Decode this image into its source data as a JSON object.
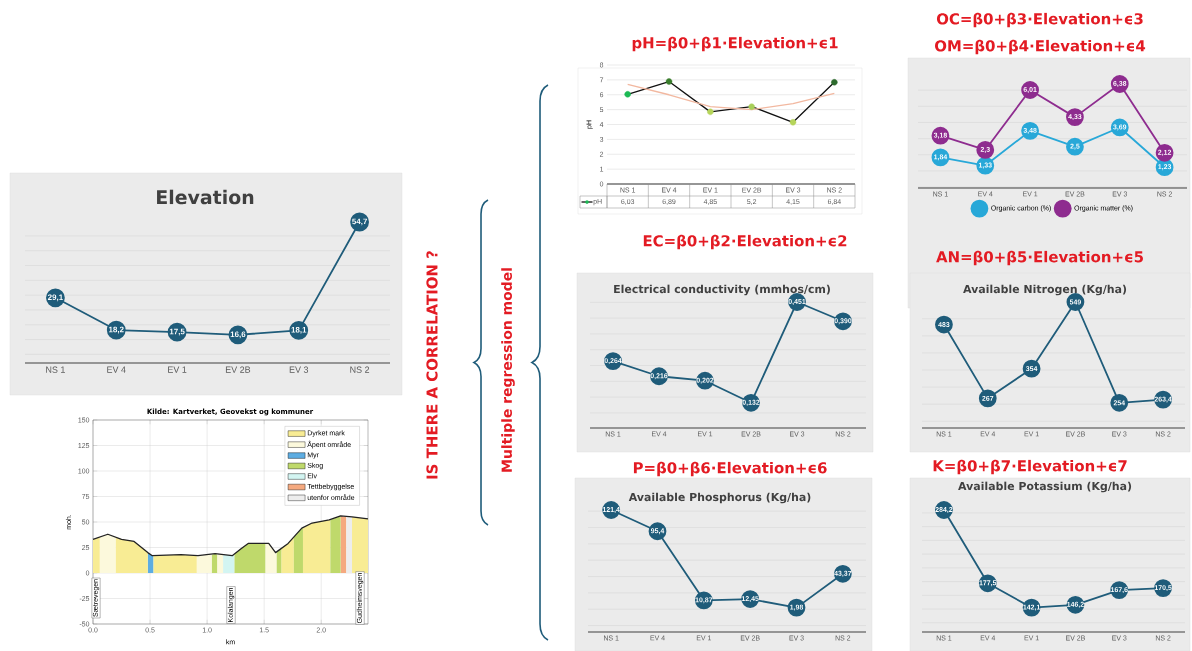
{
  "chart_data": [
    {
      "type": "line",
      "title": "Elevation",
      "categories": [
        "NS 1",
        "EV 4",
        "EV 1",
        "EV 2B",
        "EV 3",
        "NS 2"
      ],
      "grid": "y",
      "tick_labels": "x",
      "marker": "circle",
      "series": [
        {
          "color": "#1f5c7a",
          "values": [
            29.1,
            18.2,
            17.5,
            16.6,
            18.1,
            54.7
          ],
          "value_labels": [
            "29,1",
            "18,2",
            "17,5",
            "16,6",
            "18,1",
            "54,7"
          ]
        }
      ]
    },
    {
      "type": "area",
      "title": "Kilde: Kartverket, Geovekst og kommuner",
      "xlabel": "km",
      "ylabel": "moh.",
      "xlim": [
        0,
        2.41
      ],
      "ylim": [
        -50,
        150
      ],
      "xticks": [
        {
          "value": 0,
          "label": "0.0"
        },
        0.5,
        {
          "value": 1,
          "label": "1.0"
        },
        1.5,
        {
          "value": 2,
          "label": "2.0"
        }
      ],
      "yticks": [
        -50,
        -25,
        0,
        25,
        50,
        75,
        100,
        125,
        150
      ],
      "grid": true,
      "legend": "top right",
      "series": [
        {
          "name": "Dyrket mark",
          "color": "#f8ec94",
          "x": [
            0,
            0.06
          ],
          "values": [
            33,
            35
          ]
        },
        {
          "name": "Åpent område",
          "color": "#fcf9dc",
          "x": [
            0.06,
            0.13,
            0.2
          ],
          "values": [
            35,
            38,
            35
          ]
        },
        {
          "name": "Myr",
          "color": "#5dade2",
          "x": [
            0.48,
            0.52,
            0.53
          ],
          "values": [
            20,
            17,
            17
          ]
        },
        {
          "name": "Skog",
          "color": "#bfd96b",
          "x": [
            1.04,
            1.07,
            1.09
          ],
          "values": [
            18,
            19,
            18
          ]
        },
        {
          "name": "Elv",
          "color": "#d3f5f2",
          "x": [
            1.14,
            1.22,
            1.24
          ],
          "values": [
            18,
            17,
            19
          ]
        },
        {
          "name": "Tettbebyggelse",
          "color": "#f5a97f",
          "x": [
            2.17,
            2.22
          ],
          "values": [
            56,
            55
          ]
        },
        {
          "name": "utenfor område",
          "color": "#ededed",
          "x": [
            2.22,
            2.27
          ],
          "values": [
            55,
            55
          ]
        },
        {
          "color": "#f8ec94",
          "x": [
            0.2,
            0.25,
            0.36,
            0.48
          ],
          "values": [
            35,
            33,
            31,
            20
          ]
        },
        {
          "color": "#f8ec94",
          "x": [
            0.53,
            0.77,
            0.91
          ],
          "values": [
            17,
            18,
            17
          ]
        },
        {
          "color": "#f8ec94",
          "x": [
            1.65,
            1.71,
            1.76
          ],
          "values": [
            24,
            29,
            35
          ]
        },
        {
          "color": "#f8ec94",
          "x": [
            1.84,
            1.92,
            2.07,
            2.08
          ],
          "values": [
            44,
            49,
            52,
            52
          ]
        },
        {
          "color": "#f8ec94",
          "x": [
            2.27,
            2.41
          ],
          "values": [
            55,
            53
          ]
        },
        {
          "color": "#fcf9dc",
          "x": [
            0.91,
            0.92,
            1.04
          ],
          "values": [
            17,
            17,
            18
          ]
        },
        {
          "color": "#fcf9dc",
          "x": [
            1.09,
            1.14
          ],
          "values": [
            18,
            18
          ]
        },
        {
          "color": "#fcf9dc",
          "x": [
            1.51,
            1.54,
            1.6,
            1.61
          ],
          "values": [
            29,
            29,
            20,
            20
          ]
        },
        {
          "color": "#bfd96b",
          "x": [
            1.24,
            1.3,
            1.36,
            1.51
          ],
          "values": [
            19,
            24,
            29,
            29
          ]
        },
        {
          "color": "#bfd96b",
          "x": [
            1.61,
            1.65
          ],
          "values": [
            20,
            24
          ]
        },
        {
          "color": "#bfd96b",
          "x": [
            1.76,
            1.83,
            1.84
          ],
          "values": [
            35,
            44,
            44
          ]
        },
        {
          "color": "#bfd96b",
          "x": [
            2.08,
            2.17
          ],
          "values": [
            52,
            56
          ]
        },
        {
          "type": "line",
          "color": "#222222",
          "x": [
            0,
            0.13,
            0.25,
            0.36,
            0.48,
            0.52,
            0.77,
            0.92,
            1.07,
            1.22,
            1.3,
            1.36,
            1.54,
            1.6,
            1.71,
            1.83,
            1.92,
            2.07,
            2.17,
            2.27,
            2.41
          ],
          "values": [
            33,
            38,
            33,
            31,
            20,
            17,
            18,
            17,
            19,
            17,
            24,
            29,
            29,
            20,
            29,
            44,
            49,
            52,
            56,
            55,
            53
          ]
        }
      ],
      "annotations": [
        "Sætrevegen",
        "Kolalangen",
        "Gudheimsvegen"
      ]
    },
    {
      "type": "line",
      "title": "pH=β0+β1·Elevation+ϵ1",
      "ylabel": "pH",
      "categories": [
        "NS 1",
        "EV 4",
        "EV 1",
        "EV 2B",
        "EV 3",
        "NS 2"
      ],
      "ylim": [
        0,
        8
      ],
      "yticks": [
        0,
        1,
        2,
        3,
        4,
        5,
        6,
        7,
        8
      ],
      "grid": "y",
      "legend": "bottom",
      "marker": "circle",
      "series": [
        {
          "name": "pH",
          "color": "#111111",
          "colors": [
            "#1db954",
            "#3a7d2c",
            "#b5d45a",
            "#a8cf5a",
            "#b5d45a",
            "#2e6b2e"
          ],
          "values": [
            6.03,
            6.89,
            4.85,
            5.2,
            4.15,
            6.84
          ],
          "value_labels": [
            "6,03",
            "6,89",
            "4,85",
            "5,2",
            "4,15",
            "6,84"
          ]
        },
        {
          "color": "#f2b8a0",
          "marker": "none",
          "values": [
            6.7,
            6.0,
            5.2,
            5.0,
            5.4,
            6.1
          ]
        }
      ]
    },
    {
      "type": "line",
      "title": "OC=β0+β3·Elevation+ϵ3",
      "subtitle": "OM=β0+β4·Elevation+ϵ4",
      "categories": [
        "NS 1",
        "EV 4",
        "EV 1",
        "EV 2B",
        "EV 3",
        "NS 2"
      ],
      "grid": "y",
      "tick_labels": "x",
      "legend": "bottom",
      "marker": "circle",
      "series": [
        {
          "name": "Organic carbon (%)",
          "color": "#28a8d8",
          "values": [
            1.84,
            1.33,
            3.48,
            2.5,
            3.69,
            1.23
          ],
          "value_labels": [
            "1,84",
            "1,33",
            "3,48",
            "2,5",
            "3,69",
            "1,23"
          ]
        },
        {
          "name": "Organic matter (%)",
          "color": "#8e2c8f",
          "values": [
            3.18,
            2.3,
            6.01,
            4.33,
            6.38,
            2.12
          ],
          "value_labels": [
            "3,18",
            "2,3",
            "6,01",
            "4,33",
            "6,38",
            "2,12"
          ]
        }
      ]
    },
    {
      "type": "line",
      "title": "EC=β0+β2·Elevation+ϵ2",
      "subtitle": "Electrical conductivity (mmhos/cm)",
      "categories": [
        "NS 1",
        "EV 4",
        "EV 1",
        "EV 2B",
        "EV 3",
        "NS 2"
      ],
      "grid": "y",
      "tick_labels": "x",
      "marker": "circle",
      "series": [
        {
          "color": "#1f5c7a",
          "values": [
            0.264,
            0.216,
            0.202,
            0.132,
            0.451,
            0.39
          ],
          "value_labels": [
            "0,264",
            "0,216",
            "0,202",
            "0,132",
            "0,451",
            "0,390"
          ]
        }
      ]
    },
    {
      "type": "line",
      "title": "AN=β0+β5·Elevation+ϵ5",
      "subtitle": "Available Nitrogen (Kg/ha)",
      "categories": [
        "NS 1",
        "EV 4",
        "EV 1",
        "EV 2B",
        "EV 3",
        "NS 2"
      ],
      "grid": "y",
      "tick_labels": "x",
      "marker": "circle",
      "series": [
        {
          "color": "#1f5c7a",
          "values": [
            483,
            267,
            354,
            549,
            254,
            263.4
          ],
          "value_labels": [
            "483",
            "267",
            "354",
            "549",
            "254",
            "263,4"
          ]
        }
      ]
    },
    {
      "type": "line",
      "title": "P=β0+β6·Elevation+ϵ6",
      "subtitle": "Available Phosphorus (Kg/ha)",
      "categories": [
        "NS 1",
        "EV 4",
        "EV 1",
        "EV 2B",
        "EV 3",
        "NS 2"
      ],
      "grid": "y",
      "tick_labels": "x",
      "marker": "circle",
      "series": [
        {
          "color": "#1f5c7a",
          "values": [
            121.4,
            95.4,
            10.87,
            12.45,
            1.98,
            43.37
          ],
          "value_labels": [
            "121,4",
            "95,4",
            "10,87",
            "12,45",
            "1,98",
            "43,37"
          ]
        }
      ]
    },
    {
      "type": "line",
      "title": "K=β0+β7·Elevation+ϵ7",
      "subtitle": "Available Potassium (Kg/ha)",
      "categories": [
        "NS 1",
        "EV 4",
        "EV 1",
        "EV 2B",
        "EV 3",
        "NS 2"
      ],
      "grid": "y",
      "tick_labels": "x",
      "marker": "circle",
      "series": [
        {
          "color": "#1f5c7a",
          "values": [
            284.2,
            177.5,
            142.1,
            146.2,
            167.6,
            170.5
          ],
          "value_labels": [
            "284,2",
            "177,5",
            "142,1",
            "146,2",
            "167,6",
            "170,5"
          ]
        }
      ]
    },
    {
      "type": "other",
      "annotations": [
        "IS THERE A CORRELATION ?",
        "Multiple regression model"
      ]
    }
  ]
}
